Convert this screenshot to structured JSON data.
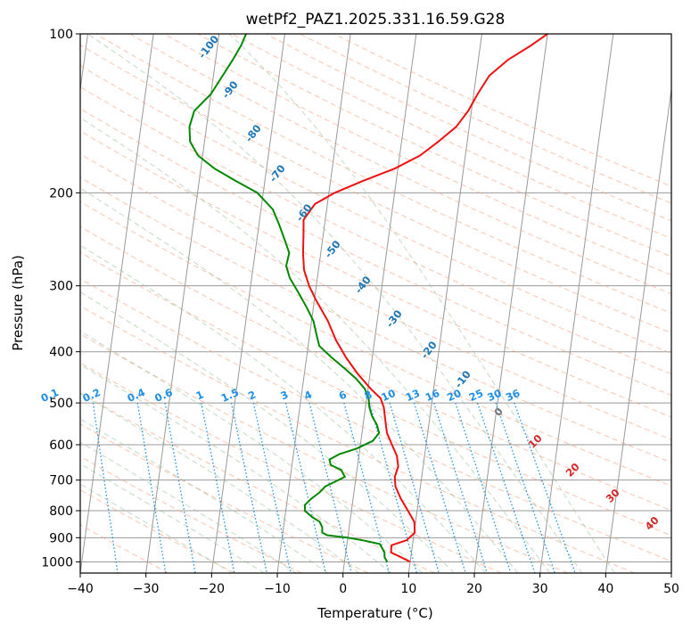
{
  "chart_data": {
    "type": "skew-t",
    "title": "wetPf2_PAZ1.2025.331.16.59.G28",
    "xlabel": "Temperature (°C)",
    "ylabel": "Pressure (hPa)",
    "xlim": [
      -40,
      50
    ],
    "ylim": [
      1050,
      100
    ],
    "y_scale": "log",
    "grid": true,
    "x_ticks": [
      "−40",
      "−30",
      "−20",
      "−10",
      "0",
      "10",
      "20",
      "30",
      "40",
      "50"
    ],
    "y_ticks": [
      {
        "p": 100,
        "label": "100"
      },
      {
        "p": 200,
        "label": "200"
      },
      {
        "p": 300,
        "label": "300"
      },
      {
        "p": 400,
        "label": "400"
      },
      {
        "p": 500,
        "label": "500"
      },
      {
        "p": 600,
        "label": "600"
      },
      {
        "p": 700,
        "label": "700"
      },
      {
        "p": 800,
        "label": "800"
      },
      {
        "p": 900,
        "label": "900"
      },
      {
        "p": 1000,
        "label": "1000"
      }
    ],
    "series": [
      {
        "color": "#ee1111",
        "points": [
          [
            1000,
            10.0
          ],
          [
            980,
            8.5
          ],
          [
            960,
            6.9
          ],
          [
            930,
            6.8
          ],
          [
            910,
            9.0
          ],
          [
            880,
            10.1
          ],
          [
            840,
            9.8
          ],
          [
            800,
            8.6
          ],
          [
            760,
            7.3
          ],
          [
            720,
            6.2
          ],
          [
            690,
            5.9
          ],
          [
            660,
            6.2
          ],
          [
            630,
            5.8
          ],
          [
            600,
            4.8
          ],
          [
            570,
            3.8
          ],
          [
            540,
            3.3
          ],
          [
            510,
            2.8
          ],
          [
            490,
            2.1
          ],
          [
            470,
            0.4
          ],
          [
            440,
            -1.9
          ],
          [
            410,
            -4.0
          ],
          [
            380,
            -5.9
          ],
          [
            350,
            -7.5
          ],
          [
            320,
            -9.7
          ],
          [
            300,
            -11.1
          ],
          [
            280,
            -12.2
          ],
          [
            260,
            -12.7
          ],
          [
            240,
            -13.0
          ],
          [
            225,
            -13.3
          ],
          [
            210,
            -11.9
          ],
          [
            200,
            -9.1
          ],
          [
            190,
            -5.1
          ],
          [
            180,
            -0.5
          ],
          [
            170,
            3.1
          ],
          [
            160,
            5.6
          ],
          [
            150,
            8.0
          ],
          [
            140,
            9.5
          ],
          [
            130,
            10.6
          ],
          [
            120,
            12.0
          ],
          [
            112,
            14.5
          ],
          [
            105,
            17.8
          ],
          [
            100,
            20.0
          ]
        ]
      },
      {
        "color": "#008800",
        "points": [
          [
            1000,
            6.5
          ],
          [
            980,
            6.0
          ],
          [
            960,
            5.9
          ],
          [
            940,
            5.4
          ],
          [
            925,
            5.0
          ],
          [
            910,
            2.3
          ],
          [
            900,
            0.0
          ],
          [
            890,
            -3.2
          ],
          [
            880,
            -4.0
          ],
          [
            860,
            -4.1
          ],
          [
            840,
            -4.6
          ],
          [
            820,
            -6.0
          ],
          [
            800,
            -7.1
          ],
          [
            780,
            -7.2
          ],
          [
            760,
            -6.4
          ],
          [
            740,
            -5.3
          ],
          [
            720,
            -4.5
          ],
          [
            705,
            -3.1
          ],
          [
            690,
            -1.7
          ],
          [
            670,
            -2.4
          ],
          [
            655,
            -4.1
          ],
          [
            640,
            -4.4
          ],
          [
            625,
            -3.0
          ],
          [
            610,
            -0.5
          ],
          [
            590,
            1.8
          ],
          [
            570,
            2.6
          ],
          [
            550,
            2.1
          ],
          [
            530,
            1.2
          ],
          [
            510,
            0.6
          ],
          [
            490,
            0.3
          ],
          [
            470,
            -0.5
          ],
          [
            450,
            -2.0
          ],
          [
            430,
            -4.0
          ],
          [
            410,
            -6.2
          ],
          [
            390,
            -8.3
          ],
          [
            370,
            -9.0
          ],
          [
            350,
            -9.7
          ],
          [
            330,
            -11.0
          ],
          [
            310,
            -12.5
          ],
          [
            290,
            -14.2
          ],
          [
            275,
            -15.0
          ],
          [
            260,
            -14.8
          ],
          [
            245,
            -15.8
          ],
          [
            230,
            -16.9
          ],
          [
            215,
            -18.2
          ],
          [
            200,
            -20.9
          ],
          [
            190,
            -24.4
          ],
          [
            180,
            -27.9
          ],
          [
            170,
            -30.7
          ],
          [
            160,
            -32.2
          ],
          [
            150,
            -32.6
          ],
          [
            140,
            -32.2
          ],
          [
            130,
            -30.0
          ],
          [
            120,
            -28.6
          ],
          [
            112,
            -27.4
          ],
          [
            105,
            -26.4
          ],
          [
            100,
            -25.9
          ]
        ]
      }
    ],
    "mixing_ratio_labels": [
      "0.1",
      "0.2",
      "0.4",
      "0.6",
      "1",
      "1.5",
      "2",
      "3",
      "4",
      "6",
      "8",
      "10",
      "13",
      "16",
      "20",
      "25",
      "30",
      "36"
    ],
    "moist_adiabat_labels": [
      "0",
      "10",
      "20",
      "30",
      "40"
    ],
    "dry_adiabat_labels": [
      "-100",
      "-90",
      "-80",
      "-70",
      "-60",
      "-50",
      "-40",
      "-30",
      "-20",
      "-10"
    ],
    "colors": {
      "temperature": "#ee1111",
      "dewpoint": "#008800",
      "isotherm": "#999999",
      "dry_adiabat": "#f4a582",
      "moist_adiabat": "#8fbc8f",
      "mixing_ratio": "#1e8fe6",
      "dry_adiabat_label": "#1f77b4",
      "moist_adiabat_label": "#d62728"
    }
  }
}
